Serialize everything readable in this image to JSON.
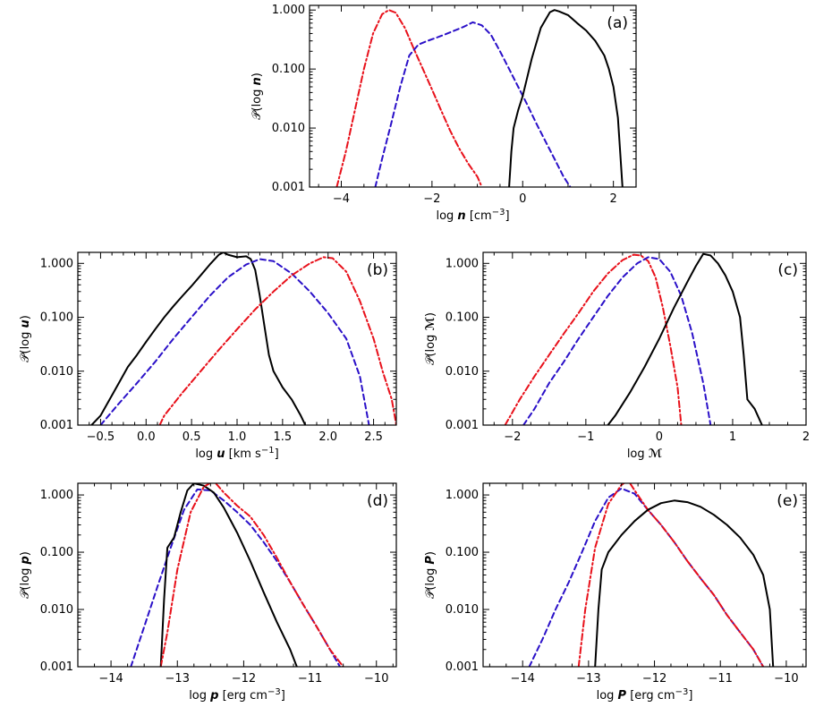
{
  "colors": {
    "solid": "#000000",
    "dashed": "#2a10c8",
    "dashdot": "#e8101a"
  },
  "chart_data": [
    {
      "id": "a",
      "type": "line",
      "panel_label": "(a)",
      "xlabel_prefix": "log ",
      "xlabel_var": "n",
      "xlabel_unit": " [cm",
      "xlabel_sup": "−3",
      "xlabel_close": "]",
      "ylabel_prefix": "𝒫(log ",
      "ylabel_var": "n",
      "ylabel_suffix": ")",
      "xlim": [
        -4.7,
        2.5
      ],
      "ylim": [
        0.001,
        1.2
      ],
      "yscale": "log",
      "xticks": [
        -4,
        -2,
        0,
        2
      ],
      "xtick_labels": [
        "−4",
        "−2",
        "0",
        "2"
      ],
      "yticks": [
        0.001,
        0.01,
        0.1,
        1
      ],
      "ytick_labels": [
        "0.001",
        "0.010",
        "0.100",
        "1.000"
      ],
      "series": [
        {
          "style": "dashdot",
          "x": [
            -4.1,
            -3.9,
            -3.7,
            -3.5,
            -3.3,
            -3.1,
            -2.95,
            -2.8,
            -2.6,
            -2.4,
            -2.2,
            -2.0,
            -1.8,
            -1.6,
            -1.4,
            -1.2,
            -1.0,
            -0.9
          ],
          "y": [
            0.001,
            0.004,
            0.02,
            0.1,
            0.4,
            0.85,
            1.0,
            0.9,
            0.5,
            0.22,
            0.1,
            0.045,
            0.02,
            0.009,
            0.0045,
            0.0025,
            0.0015,
            0.001
          ]
        },
        {
          "style": "dashed",
          "x": [
            -3.25,
            -3.1,
            -2.9,
            -2.7,
            -2.5,
            -2.3,
            -2.1,
            -1.9,
            -1.7,
            -1.5,
            -1.3,
            -1.1,
            -0.9,
            -0.7,
            -0.5,
            -0.3,
            -0.1,
            0.1,
            0.3,
            0.5,
            0.7,
            0.9,
            1.05
          ],
          "y": [
            0.001,
            0.003,
            0.012,
            0.05,
            0.17,
            0.26,
            0.3,
            0.34,
            0.39,
            0.45,
            0.52,
            0.62,
            0.55,
            0.38,
            0.2,
            0.1,
            0.05,
            0.025,
            0.012,
            0.006,
            0.003,
            0.0015,
            0.001
          ]
        },
        {
          "style": "solid",
          "x": [
            -0.3,
            -0.25,
            -0.2,
            -0.1,
            0.0,
            0.2,
            0.4,
            0.6,
            0.7,
            0.8,
            1.0,
            1.2,
            1.4,
            1.6,
            1.8,
            1.9,
            2.0,
            2.1,
            2.2
          ],
          "y": [
            0.001,
            0.004,
            0.01,
            0.02,
            0.035,
            0.15,
            0.5,
            0.92,
            1.0,
            0.95,
            0.82,
            0.6,
            0.45,
            0.3,
            0.17,
            0.1,
            0.05,
            0.015,
            0.001
          ]
        }
      ]
    },
    {
      "id": "b",
      "type": "line",
      "panel_label": "(b)",
      "xlabel_prefix": "log ",
      "xlabel_var": "u",
      "xlabel_unit": " [km s",
      "xlabel_sup": "−1",
      "xlabel_close": "]",
      "ylabel_prefix": "𝒫(log ",
      "ylabel_var": "u",
      "ylabel_suffix": ")",
      "xlim": [
        -0.75,
        2.75
      ],
      "ylim": [
        0.001,
        1.6
      ],
      "yscale": "log",
      "xticks": [
        -0.5,
        0,
        0.5,
        1,
        1.5,
        2,
        2.5
      ],
      "xtick_labels": [
        "−0.5",
        "0.0",
        "0.5",
        "1.0",
        "1.5",
        "2.0",
        "2.5"
      ],
      "yticks": [
        0.001,
        0.01,
        0.1,
        1
      ],
      "ytick_labels": [
        "0.001",
        "0.010",
        "0.100",
        "1.000"
      ],
      "series": [
        {
          "style": "solid",
          "x": [
            -0.6,
            -0.5,
            -0.4,
            -0.3,
            -0.2,
            -0.1,
            0.0,
            0.1,
            0.2,
            0.3,
            0.4,
            0.5,
            0.6,
            0.7,
            0.8,
            0.85,
            0.9,
            1.0,
            1.1,
            1.15,
            1.2,
            1.25,
            1.3,
            1.35,
            1.4,
            1.5,
            1.6,
            1.7,
            1.75
          ],
          "y": [
            0.001,
            0.0015,
            0.003,
            0.006,
            0.012,
            0.02,
            0.035,
            0.06,
            0.1,
            0.16,
            0.25,
            0.38,
            0.6,
            0.95,
            1.45,
            1.6,
            1.45,
            1.3,
            1.35,
            1.2,
            0.75,
            0.25,
            0.07,
            0.02,
            0.01,
            0.005,
            0.003,
            0.0015,
            0.001
          ]
        },
        {
          "style": "dashed",
          "x": [
            -0.5,
            -0.3,
            -0.1,
            0.1,
            0.3,
            0.5,
            0.7,
            0.9,
            1.1,
            1.25,
            1.4,
            1.6,
            1.8,
            2.0,
            2.2,
            2.35,
            2.45
          ],
          "y": [
            0.001,
            0.0025,
            0.006,
            0.015,
            0.04,
            0.1,
            0.25,
            0.55,
            0.95,
            1.2,
            1.1,
            0.65,
            0.3,
            0.12,
            0.04,
            0.008,
            0.001
          ]
        },
        {
          "style": "dashdot",
          "x": [
            0.15,
            0.2,
            0.4,
            0.6,
            0.8,
            1.0,
            1.2,
            1.4,
            1.6,
            1.8,
            1.95,
            2.05,
            2.2,
            2.35,
            2.5,
            2.6,
            2.7,
            2.75
          ],
          "y": [
            0.001,
            0.0015,
            0.004,
            0.01,
            0.025,
            0.06,
            0.14,
            0.3,
            0.6,
            1.0,
            1.3,
            1.25,
            0.7,
            0.2,
            0.04,
            0.01,
            0.003,
            0.001
          ]
        }
      ]
    },
    {
      "id": "c",
      "type": "line",
      "panel_label": "(c)",
      "xlabel_prefix": "log ",
      "xlabel_var": "ℳ",
      "xlabel_unit": "",
      "xlabel_sup": "",
      "xlabel_close": "",
      "ylabel_prefix": "𝒫(log ",
      "ylabel_var": "ℳ",
      "ylabel_suffix": ")",
      "xlim": [
        -2.4,
        2.0
      ],
      "ylim": [
        0.001,
        1.6
      ],
      "yscale": "log",
      "xticks": [
        -2,
        -1,
        0,
        1,
        2
      ],
      "xtick_labels": [
        "−2",
        "−1",
        "0",
        "1",
        "2"
      ],
      "yticks": [
        0.001,
        0.01,
        0.1,
        1
      ],
      "ytick_labels": [
        "0.001",
        "0.010",
        "0.100",
        "1.000"
      ],
      "series": [
        {
          "style": "dashdot",
          "x": [
            -2.1,
            -1.9,
            -1.7,
            -1.5,
            -1.3,
            -1.1,
            -0.9,
            -0.7,
            -0.5,
            -0.35,
            -0.25,
            -0.15,
            -0.05,
            0.05,
            0.15,
            0.25,
            0.3
          ],
          "y": [
            0.001,
            0.003,
            0.008,
            0.02,
            0.05,
            0.12,
            0.3,
            0.65,
            1.15,
            1.45,
            1.4,
            1.1,
            0.55,
            0.15,
            0.03,
            0.005,
            0.001
          ]
        },
        {
          "style": "dashed",
          "x": [
            -1.85,
            -1.7,
            -1.5,
            -1.3,
            -1.1,
            -0.9,
            -0.7,
            -0.5,
            -0.3,
            -0.15,
            0.0,
            0.15,
            0.3,
            0.45,
            0.6,
            0.7
          ],
          "y": [
            0.001,
            0.002,
            0.006,
            0.015,
            0.04,
            0.1,
            0.25,
            0.55,
            1.0,
            1.3,
            1.2,
            0.7,
            0.25,
            0.05,
            0.006,
            0.001
          ]
        },
        {
          "style": "solid",
          "x": [
            -0.7,
            -0.6,
            -0.4,
            -0.2,
            0.0,
            0.2,
            0.4,
            0.5,
            0.6,
            0.7,
            0.8,
            0.9,
            1.0,
            1.1,
            1.15,
            1.2,
            1.3,
            1.4
          ],
          "y": [
            0.001,
            0.0015,
            0.004,
            0.012,
            0.04,
            0.15,
            0.5,
            0.9,
            1.5,
            1.4,
            1.0,
            0.6,
            0.3,
            0.1,
            0.02,
            0.003,
            0.002,
            0.001
          ]
        }
      ]
    },
    {
      "id": "d",
      "type": "line",
      "panel_label": "(d)",
      "xlabel_prefix": "log ",
      "xlabel_var": "p",
      "xlabel_unit": " [erg cm",
      "xlabel_sup": "−3",
      "xlabel_close": "]",
      "ylabel_prefix": "𝒫(log ",
      "ylabel_var": "p",
      "ylabel_suffix": ")",
      "xlim": [
        -14.5,
        -9.7
      ],
      "ylim": [
        0.001,
        1.6
      ],
      "yscale": "log",
      "xticks": [
        -14,
        -13,
        -12,
        -11,
        -10
      ],
      "xtick_labels": [
        "−14",
        "−13",
        "−12",
        "−11",
        "−10"
      ],
      "yticks": [
        0.001,
        0.01,
        0.1,
        1
      ],
      "ytick_labels": [
        "0.001",
        "0.010",
        "0.100",
        "1.000"
      ],
      "series": [
        {
          "style": "dashed",
          "x": [
            -13.7,
            -13.5,
            -13.3,
            -13.1,
            -12.9,
            -12.7,
            -12.5,
            -12.3,
            -12.1,
            -11.9,
            -11.7,
            -11.5,
            -11.3,
            -11.1,
            -10.9,
            -10.7,
            -10.55
          ],
          "y": [
            0.001,
            0.005,
            0.025,
            0.12,
            0.55,
            1.25,
            1.2,
            0.8,
            0.5,
            0.3,
            0.15,
            0.07,
            0.03,
            0.012,
            0.005,
            0.002,
            0.001
          ]
        },
        {
          "style": "solid",
          "x": [
            -13.25,
            -13.2,
            -13.15,
            -13.05,
            -12.95,
            -12.85,
            -12.75,
            -12.6,
            -12.45,
            -12.3,
            -12.1,
            -11.9,
            -11.7,
            -11.5,
            -11.3,
            -11.2
          ],
          "y": [
            0.001,
            0.015,
            0.12,
            0.18,
            0.5,
            1.2,
            1.6,
            1.45,
            1.1,
            0.6,
            0.22,
            0.07,
            0.02,
            0.006,
            0.002,
            0.001
          ]
        },
        {
          "style": "dashdot",
          "x": [
            -13.25,
            -13.15,
            -13.0,
            -12.8,
            -12.6,
            -12.45,
            -12.3,
            -12.1,
            -11.9,
            -11.7,
            -11.5,
            -11.3,
            -11.1,
            -10.9,
            -10.7,
            -10.5
          ],
          "y": [
            0.001,
            0.004,
            0.05,
            0.5,
            1.4,
            1.75,
            1.1,
            0.65,
            0.42,
            0.2,
            0.08,
            0.03,
            0.012,
            0.005,
            0.002,
            0.001
          ]
        }
      ]
    },
    {
      "id": "e",
      "type": "line",
      "panel_label": "(e)",
      "xlabel_prefix": "log ",
      "xlabel_var": "P",
      "xlabel_unit": " [erg cm",
      "xlabel_sup": "−3",
      "xlabel_close": "]",
      "ylabel_prefix": "𝒫(log ",
      "ylabel_var": "P",
      "ylabel_suffix": ")",
      "xlim": [
        -14.6,
        -9.7
      ],
      "ylim": [
        0.001,
        1.6
      ],
      "yscale": "log",
      "xticks": [
        -14,
        -13,
        -12,
        -11,
        -10
      ],
      "xtick_labels": [
        "−14",
        "−13",
        "−12",
        "−11",
        "−10"
      ],
      "yticks": [
        0.001,
        0.01,
        0.1,
        1
      ],
      "ytick_labels": [
        "0.001",
        "0.010",
        "0.100",
        "1.000"
      ],
      "series": [
        {
          "style": "dashed",
          "x": [
            -13.9,
            -13.7,
            -13.5,
            -13.3,
            -13.1,
            -12.9,
            -12.7,
            -12.5,
            -12.3,
            -12.1,
            -11.9,
            -11.7,
            -11.5,
            -11.3,
            -11.1,
            -10.9,
            -10.7,
            -10.5,
            -10.35
          ],
          "y": [
            0.001,
            0.003,
            0.01,
            0.03,
            0.1,
            0.35,
            0.9,
            1.3,
            1.05,
            0.55,
            0.3,
            0.15,
            0.07,
            0.035,
            0.018,
            0.008,
            0.004,
            0.002,
            0.001
          ]
        },
        {
          "style": "dashdot",
          "x": [
            -13.15,
            -13.05,
            -12.9,
            -12.7,
            -12.5,
            -12.4,
            -12.3,
            -12.1,
            -11.9,
            -11.7,
            -11.5,
            -11.3,
            -11.1,
            -10.9,
            -10.7,
            -10.5,
            -10.35
          ],
          "y": [
            0.001,
            0.01,
            0.12,
            0.7,
            1.5,
            1.8,
            1.2,
            0.55,
            0.3,
            0.15,
            0.07,
            0.035,
            0.018,
            0.008,
            0.004,
            0.002,
            0.001
          ]
        },
        {
          "style": "solid",
          "x": [
            -12.9,
            -12.85,
            -12.8,
            -12.7,
            -12.5,
            -12.3,
            -12.1,
            -11.9,
            -11.7,
            -11.5,
            -11.3,
            -11.1,
            -10.9,
            -10.7,
            -10.5,
            -10.35,
            -10.25,
            -10.2
          ],
          "y": [
            0.001,
            0.01,
            0.05,
            0.1,
            0.2,
            0.35,
            0.55,
            0.72,
            0.8,
            0.75,
            0.62,
            0.45,
            0.3,
            0.18,
            0.09,
            0.04,
            0.01,
            0.001
          ]
        }
      ]
    }
  ]
}
